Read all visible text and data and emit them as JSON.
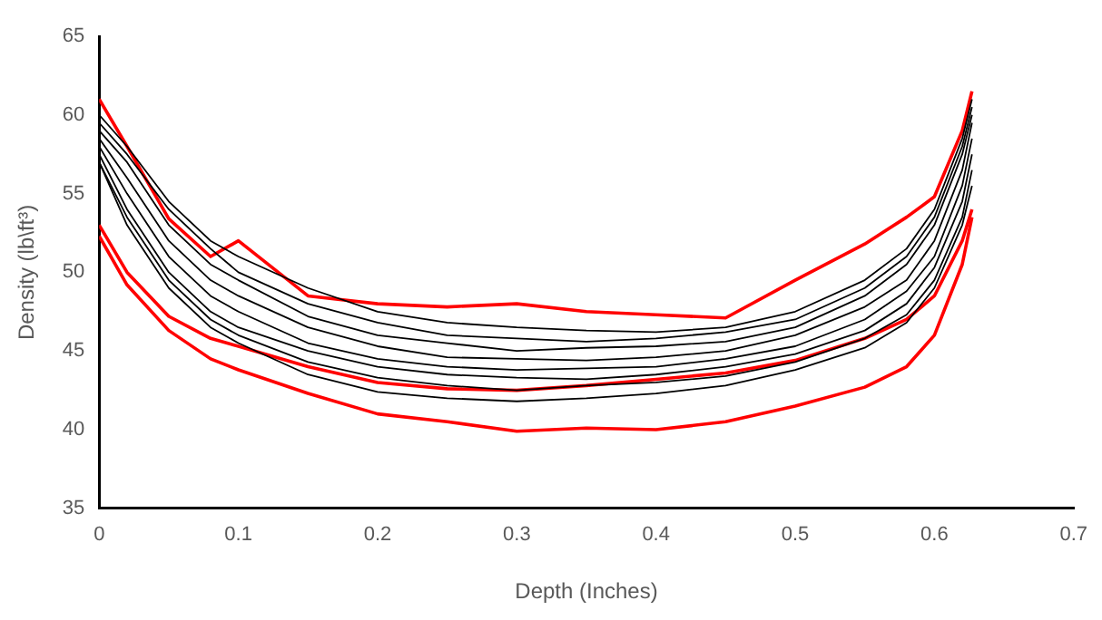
{
  "chart_data": {
    "type": "line",
    "xlabel": "Depth (Inches)",
    "ylabel": "Density (lb\\ft³)",
    "x": [
      0,
      0.02,
      0.05,
      0.08,
      0.1,
      0.15,
      0.2,
      0.25,
      0.3,
      0.35,
      0.4,
      0.45,
      0.5,
      0.55,
      0.58,
      0.6,
      0.62,
      0.627
    ],
    "xlim": [
      0,
      0.7
    ],
    "xticks": [
      0,
      0.1,
      0.2,
      0.3,
      0.4,
      0.5,
      0.6,
      0.7
    ],
    "ylim": [
      35,
      65
    ],
    "yticks": [
      35,
      40,
      45,
      50,
      55,
      60,
      65
    ],
    "grid": false,
    "legend": false,
    "line_style": "solid",
    "series": [
      {
        "color": "#000000",
        "values": [
          60,
          58,
          54.5,
          52,
          51,
          49,
          47.5,
          46.8,
          46.5,
          46.3,
          46.2,
          46.5,
          47.5,
          49.5,
          51.5,
          54,
          58.5,
          61
        ]
      },
      {
        "color": "#000000",
        "values": [
          59.5,
          57.5,
          54,
          51.5,
          50,
          48,
          46.8,
          46,
          45.8,
          45.6,
          45.8,
          46.2,
          47,
          49,
          51,
          53.5,
          58,
          60.5
        ]
      },
      {
        "color": "#000000",
        "values": [
          59,
          57,
          53,
          50.5,
          49.5,
          47.2,
          46,
          45.5,
          45,
          45.2,
          45.3,
          45.6,
          46.5,
          48.5,
          50.5,
          53,
          57.5,
          60
        ]
      },
      {
        "color": "#000000",
        "values": [
          58.5,
          56,
          52,
          49.5,
          48.5,
          46.5,
          45.3,
          44.6,
          44.5,
          44.4,
          44.6,
          45,
          46,
          47.8,
          49.5,
          52,
          56.5,
          59.5
        ]
      },
      {
        "color": "#000000",
        "values": [
          58,
          55,
          51,
          48.5,
          47.5,
          45.5,
          44.5,
          44,
          43.8,
          43.9,
          44,
          44.5,
          45.3,
          47,
          48.8,
          51,
          55.5,
          58.5
        ]
      },
      {
        "color": "#000000",
        "values": [
          57.5,
          54,
          50,
          47.5,
          46.5,
          45,
          44,
          43.5,
          43.3,
          43.2,
          43.5,
          44,
          44.8,
          46.3,
          48,
          50.3,
          54.5,
          57.5
        ]
      },
      {
        "color": "#000000",
        "values": [
          57,
          53.5,
          49.5,
          47,
          46,
          44.3,
          43.3,
          42.8,
          42.5,
          42.8,
          43,
          43.4,
          44.3,
          45.8,
          47.3,
          49.5,
          53.5,
          56.5
        ]
      },
      {
        "color": "#000000",
        "values": [
          57,
          53,
          49,
          46.5,
          45.5,
          43.5,
          42.4,
          42,
          41.8,
          42,
          42.3,
          42.8,
          43.8,
          45.2,
          46.8,
          49,
          53,
          55.5
        ]
      },
      {
        "color": "#ff0000",
        "values": [
          61,
          58,
          53.4,
          51,
          52,
          48.5,
          48,
          47.8,
          48,
          47.5,
          47.3,
          47.1,
          49.5,
          51.8,
          53.5,
          54.8,
          59,
          61.5
        ]
      },
      {
        "color": "#ff0000",
        "values": [
          53,
          50,
          47.2,
          45.8,
          45.3,
          44,
          43,
          42.6,
          42.5,
          42.8,
          43.2,
          43.6,
          44.4,
          45.8,
          47,
          48.5,
          52,
          54
        ]
      },
      {
        "color": "#ff0000",
        "values": [
          52.3,
          49.2,
          46.3,
          44.5,
          43.8,
          42.3,
          41,
          40.5,
          39.9,
          40.1,
          40,
          40.5,
          41.5,
          42.7,
          44,
          46,
          50.5,
          53.5
        ]
      }
    ]
  }
}
